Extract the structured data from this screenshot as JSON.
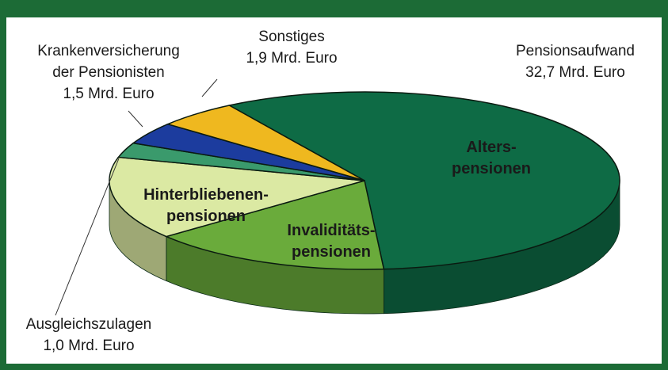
{
  "chart_data": {
    "type": "pie",
    "categories": [
      [
        "Alters-",
        "pensionen"
      ],
      [
        "Invaliditäts-",
        "pensionen"
      ],
      [
        "Hinterbliebenen-",
        "pensionen"
      ],
      [
        "Ausgleichszulagen"
      ],
      [
        "Krankenversicherung",
        "der Pensionisten"
      ],
      [
        "Sonstiges"
      ]
    ],
    "values": [
      21.4,
      5.7,
      5.6,
      1.0,
      1.5,
      1.9
    ],
    "value_labels": [
      null,
      null,
      null,
      "1,0 Mrd. Euro",
      "1,5 Mrd. Euro",
      "1,9 Mrd. Euro"
    ],
    "colors": [
      "#0e6b45",
      "#6aab3b",
      "#dbe9a3",
      "#3a9a6c",
      "#1c3c9e",
      "#efb81f"
    ],
    "annotations": [
      {
        "text": "Pensionsaufwand",
        "value": 32.7,
        "label": "32,7 Mrd. Euro"
      }
    ]
  }
}
